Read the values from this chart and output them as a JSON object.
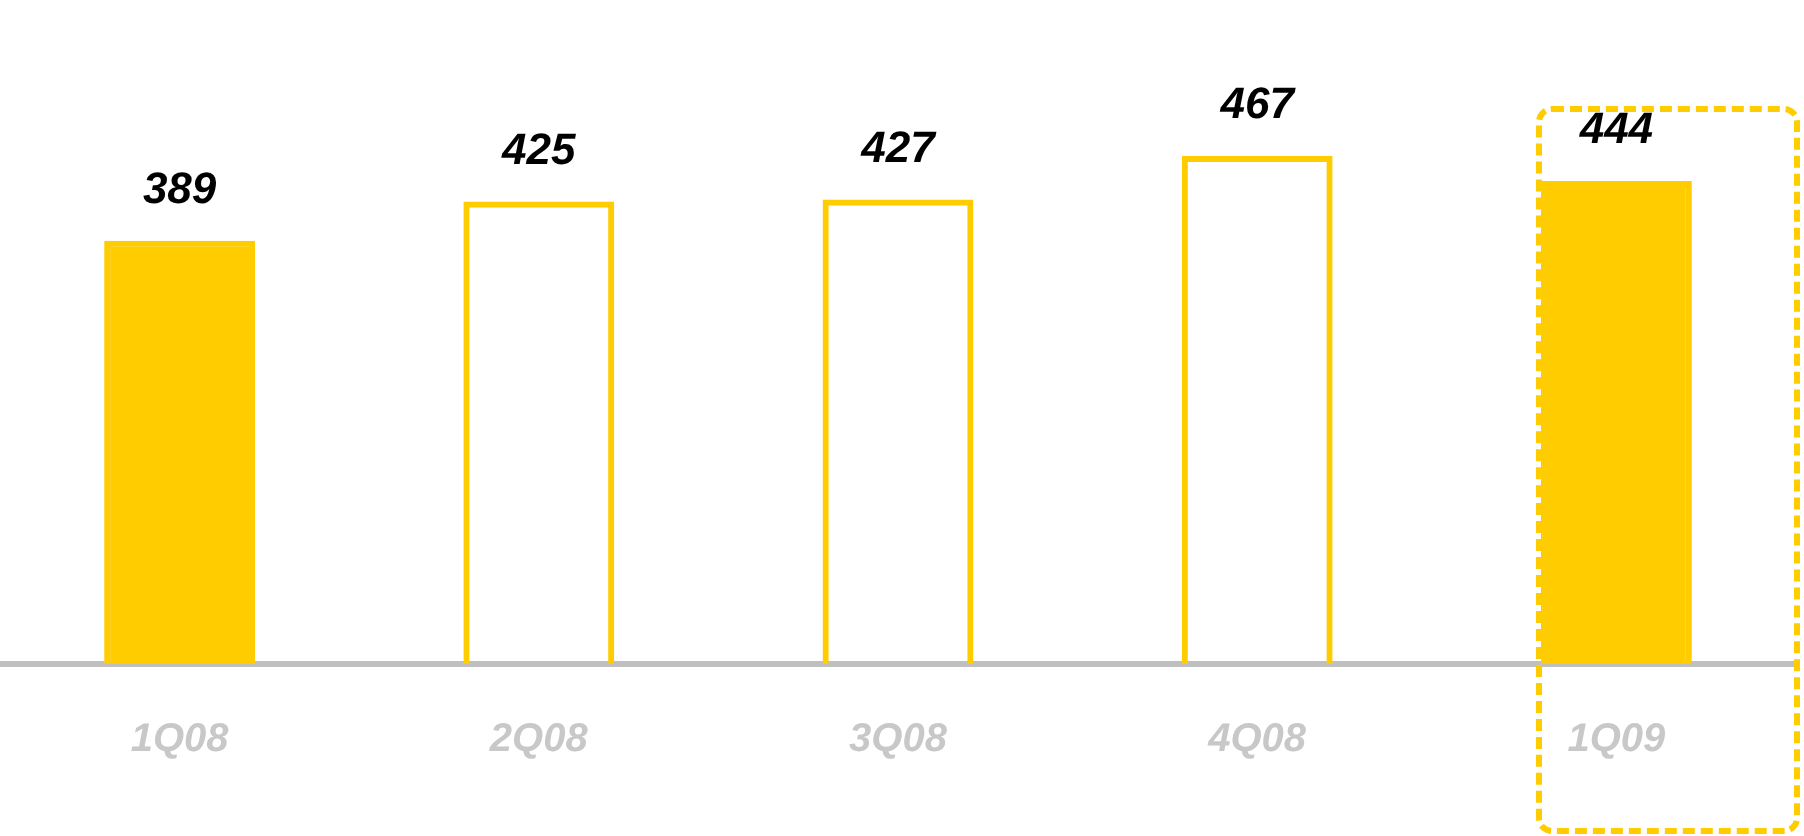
{
  "chart_data": {
    "type": "bar",
    "categories": [
      "1Q08",
      "2Q08",
      "3Q08",
      "4Q08",
      "1Q09"
    ],
    "series": [
      {
        "color": "#ffcc00",
        "values": [
          389,
          null,
          null,
          null,
          444
        ]
      },
      {
        "color": "#ffcc00",
        "values": [
          null,
          425,
          427,
          467,
          null
        ]
      }
    ],
    "data_labels": true,
    "grid": false,
    "legend": false,
    "tick_labels": "x"
  }
}
